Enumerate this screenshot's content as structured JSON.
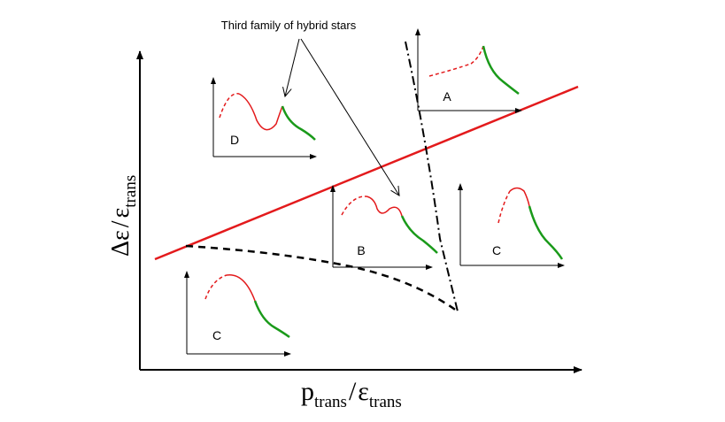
{
  "annotation": "Third family of hybrid stars",
  "axes": {
    "x_main": "p",
    "x_main_sub": "trans",
    "x_slash": "/",
    "x_den": "ε",
    "x_den_sub": "trans",
    "y_main": "Δε",
    "y_slash": "/",
    "y_den": "ε",
    "y_den_sub": "trans"
  },
  "regions": {
    "A": "A",
    "B": "B",
    "C_left": "C",
    "C_right": "C",
    "D": "D"
  },
  "colors": {
    "threshold_line": "#e31a1c",
    "unstable_branch": "#e31a1c",
    "stable_branch": "#1a9a1a",
    "axis": "#000000"
  }
}
